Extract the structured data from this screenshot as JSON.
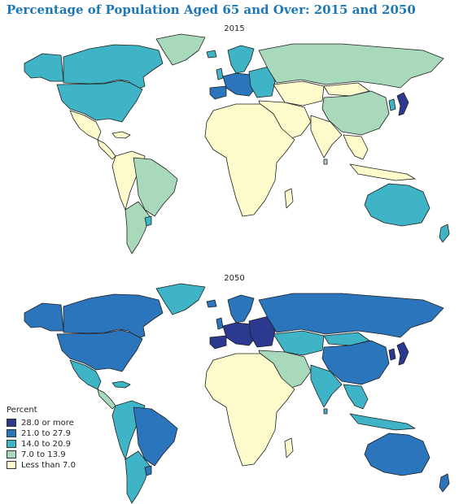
{
  "title": "Percentage of Population Aged 65 and Over: 2015 and 2050",
  "colors": {
    "c1": "#2b3990",
    "c2": "#2a75bc",
    "c3": "#3fb4c6",
    "c4": "#a8d9bb",
    "c5": "#fdfbcc",
    "border": "#1e1e1e"
  },
  "maps": [
    {
      "year_label": "2015",
      "regions": {
        "canada": "c3",
        "greenland": "c4",
        "alaska": "c3",
        "usa": "c3",
        "mexico": "c5",
        "central_america": "c5",
        "caribbean": "c5",
        "brazil": "c4",
        "andes_north": "c5",
        "southern_cone": "c4",
        "uruguay": "c3",
        "europe_west": "c2",
        "iberia": "c2",
        "scandinavia": "c3",
        "europe_east": "c3",
        "russia": "c4",
        "central_asia": "c5",
        "china": "c4",
        "mongolia": "c5",
        "middle_east": "c5",
        "africa": "c5",
        "india": "c5",
        "southeast_asia": "c5",
        "japan": "c1",
        "korea": "c3",
        "indonesia": "c5",
        "australia": "c3",
        "new_zealand": "c3",
        "madagascar": "c5",
        "iceland": "c3",
        "uk": "c3",
        "sri_lanka": "c4"
      }
    },
    {
      "year_label": "2050",
      "regions": {
        "canada": "c2",
        "greenland": "c3",
        "alaska": "c2",
        "usa": "c2",
        "mexico": "c3",
        "central_america": "c4",
        "caribbean": "c3",
        "brazil": "c2",
        "andes_north": "c3",
        "southern_cone": "c3",
        "uruguay": "c2",
        "europe_west": "c1",
        "iberia": "c1",
        "scandinavia": "c2",
        "europe_east": "c1",
        "russia": "c2",
        "central_asia": "c3",
        "china": "c2",
        "mongolia": "c3",
        "middle_east": "c4",
        "africa": "c5",
        "india": "c3",
        "southeast_asia": "c3",
        "japan": "c1",
        "korea": "c1",
        "indonesia": "c3",
        "australia": "c2",
        "new_zealand": "c2",
        "madagascar": "c5",
        "iceland": "c2",
        "uk": "c2",
        "sri_lanka": "c3"
      }
    }
  ],
  "legend": {
    "title": "Percent",
    "items": [
      {
        "label": "28.0 or more",
        "color": "c1"
      },
      {
        "label": "21.0 to 27.9",
        "color": "c2"
      },
      {
        "label": "14.0 to 20.9",
        "color": "c3"
      },
      {
        "label": "7.0 to 13.9",
        "color": "c4"
      },
      {
        "label": "Less than 7.0",
        "color": "c5"
      }
    ]
  }
}
